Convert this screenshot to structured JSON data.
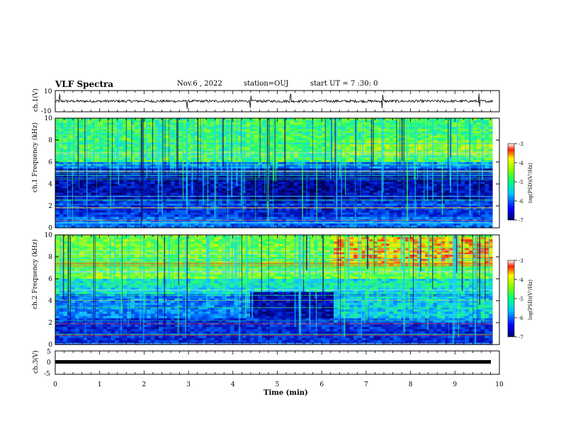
{
  "header": {
    "title": "VLF Spectra",
    "date": "Nov.6 , 2022",
    "station": "station=OUJ",
    "start": "start UT = 7 :30: 0"
  },
  "chart_data": [
    {
      "type": "line",
      "panel": "ch1-waveform",
      "ylabel": "ch.1(V)",
      "ylim": [
        -10,
        10
      ],
      "yticks": [
        "10",
        "-10"
      ],
      "series": [
        {
          "description_values": "noisy waveform",
          "baseline": 0,
          "amplitude": 1.2,
          "spikes_at_min": [
            0.1,
            2.97,
            4.4,
            5.3,
            7.37,
            9.55
          ]
        }
      ]
    },
    {
      "type": "heatmap",
      "panel": "ch1-spectrogram",
      "ylabel": "ch.1 Frequency (kHz)",
      "ylim": [
        0,
        10
      ],
      "yticks": [
        "0",
        "2",
        "4",
        "6",
        "8",
        "10"
      ],
      "colorbar": {
        "label": "log(PSD)(V²/Hz)",
        "range": [
          -7,
          -3
        ],
        "ticks": [
          "-3",
          "-4",
          "-5",
          "-6",
          "-7"
        ]
      }
    },
    {
      "type": "heatmap",
      "panel": "ch2-spectrogram",
      "ylabel": "ch.2 Frequency (kHz)",
      "ylim": [
        0,
        10
      ],
      "yticks": [
        "0",
        "2",
        "4",
        "6",
        "8",
        "10"
      ],
      "colorbar": {
        "label": "log(PSD)(V²/Hz)",
        "range": [
          -7,
          -3
        ],
        "ticks": [
          "-3",
          "-4",
          "-5",
          "-6",
          "-7"
        ]
      }
    },
    {
      "type": "line",
      "panel": "ch3-waveform",
      "ylabel": "ch.3(V)",
      "ylim": [
        -5,
        5
      ],
      "yticks": [
        "5",
        "0",
        "-5"
      ],
      "series": [
        {
          "values_constant": -1.0
        }
      ]
    }
  ],
  "xaxis": {
    "label": "Time (min)",
    "range": [
      0,
      10
    ],
    "data_end": 9.85,
    "ticks": [
      "0",
      "1",
      "2",
      "3",
      "4",
      "5",
      "6",
      "7",
      "8",
      "9",
      "10"
    ]
  },
  "colors": {
    "dark": "#0a0a6e",
    "blue": "#0a3cff",
    "cyan": "#19d2ff",
    "green": "#32ff5a",
    "yellow": "#ffe61e",
    "red": "#ff1e1e"
  }
}
